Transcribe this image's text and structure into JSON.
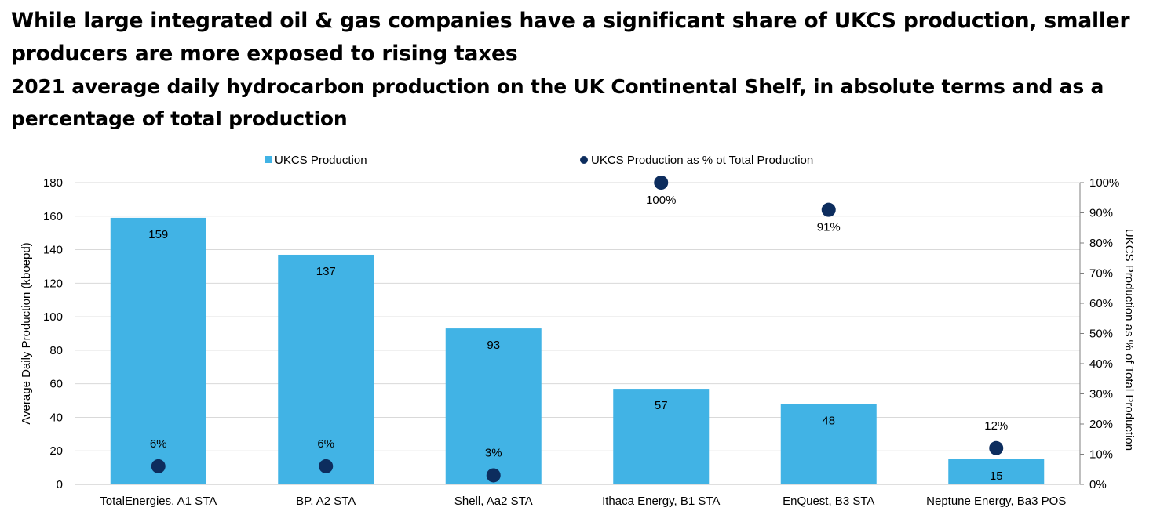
{
  "title": "While large integrated oil & gas companies have a significant share of UKCS production, smaller producers are more exposed to rising taxes",
  "subtitle": "2021 average daily hydrocarbon production on the UK Continental Shelf, in absolute terms and as a percentage of total production",
  "chart_data": {
    "type": "bar",
    "categories": [
      "TotalEnergies, A1 STA",
      "BP, A2 STA",
      "Shell, Aa2 STA",
      "Ithaca Energy, B1 STA",
      "EnQuest, B3 STA",
      "Neptune Energy, Ba3 POS"
    ],
    "series": [
      {
        "name": "UKCS Production",
        "type": "bar",
        "axis": "left",
        "color": "#41b3e5",
        "values": [
          159,
          137,
          93,
          57,
          48,
          15
        ],
        "labels": [
          "159",
          "137",
          "93",
          "57",
          "48",
          "15"
        ]
      },
      {
        "name": "UKCS Production as % ot Total Production",
        "type": "scatter",
        "axis": "right",
        "color": "#0d2d5e",
        "values": [
          6,
          6,
          3,
          100,
          91,
          12
        ],
        "labels": [
          "6%",
          "6%",
          "3%",
          "100%",
          "91%",
          "12%"
        ]
      }
    ],
    "ylabel": "Average Daily Production (kboepd)",
    "y2label": "UKCS Production as % of Total Production",
    "ylim": [
      0,
      180
    ],
    "yticks": [
      "0",
      "20",
      "40",
      "60",
      "80",
      "100",
      "120",
      "140",
      "160",
      "180"
    ],
    "y2lim": [
      0,
      100
    ],
    "y2ticks": [
      "0%",
      "10%",
      "20%",
      "30%",
      "40%",
      "50%",
      "60%",
      "70%",
      "80%",
      "90%",
      "100%"
    ],
    "grid": true,
    "legend_position": "top"
  }
}
